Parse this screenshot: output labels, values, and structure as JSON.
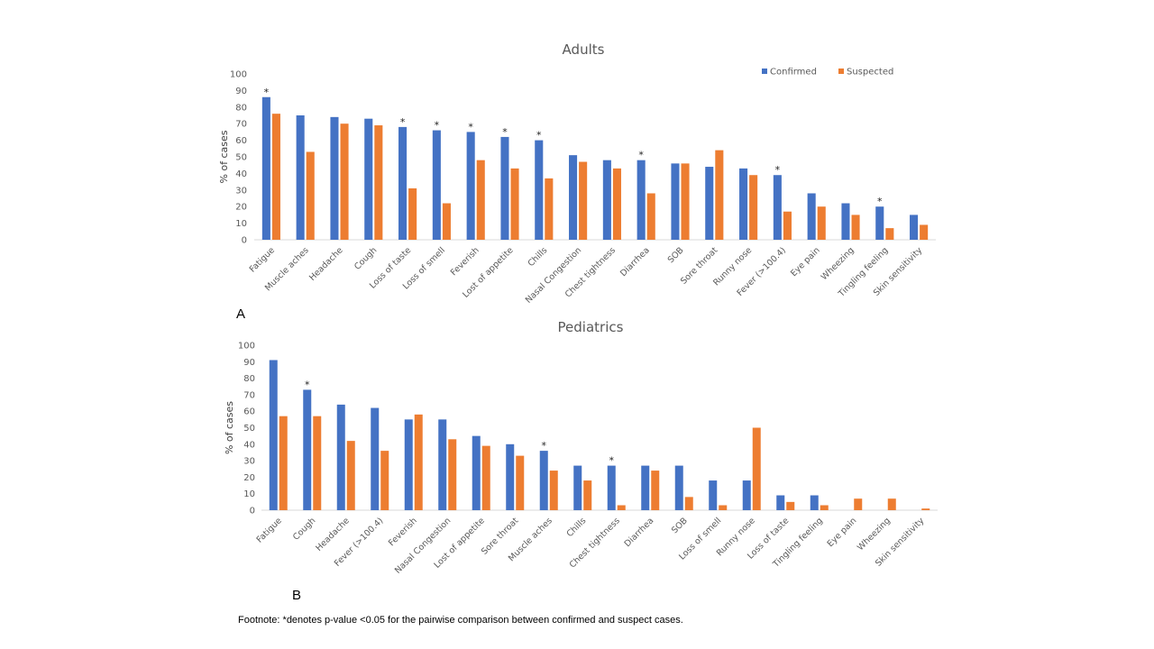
{
  "colors": {
    "confirmed": "#4472C4",
    "suspected": "#ED7D31",
    "axis": "#D9D9D9",
    "text": "#595959"
  },
  "footnote": "Footnote: *denotes p-value <0.05 for the pairwise comparison between confirmed and suspect cases.",
  "chart_data": [
    {
      "type": "bar",
      "panel_label": "A",
      "title": "Adults",
      "xlabel": "",
      "ylabel": "% of cases",
      "ylim": [
        0,
        100
      ],
      "yticks": [
        0,
        10,
        20,
        30,
        40,
        50,
        60,
        70,
        80,
        90,
        100
      ],
      "grid": false,
      "legend_position": "top-right",
      "categories": [
        "Fatigue",
        "Muscle aches",
        "Headache",
        "Cough",
        "Loss of taste",
        "Loss of smell",
        "Feverish",
        "Lost of appetite",
        "Chills",
        "Nasal Congestion",
        "Chest tightness",
        "Diarrhea",
        "SOB",
        "Sore throat",
        "Runny nose",
        "Fever (>100.4)",
        "Eye pain",
        "Wheezing",
        "Tingling feeling",
        "Skin sensitivity"
      ],
      "series": [
        {
          "name": "Confirmed",
          "values": [
            86,
            75,
            74,
            73,
            68,
            66,
            65,
            62,
            60,
            51,
            48,
            48,
            46,
            44,
            43,
            39,
            28,
            22,
            20,
            15
          ]
        },
        {
          "name": "Suspected",
          "values": [
            76,
            53,
            70,
            69,
            31,
            22,
            48,
            43,
            37,
            47,
            43,
            28,
            46,
            54,
            39,
            17,
            20,
            15,
            7,
            9
          ]
        }
      ],
      "significant": [
        true,
        false,
        false,
        false,
        true,
        true,
        true,
        true,
        true,
        false,
        false,
        true,
        false,
        false,
        false,
        true,
        false,
        false,
        true,
        false
      ]
    },
    {
      "type": "bar",
      "panel_label": "B",
      "title": "Pediatrics",
      "xlabel": "",
      "ylabel": "% of cases",
      "ylim": [
        0,
        100
      ],
      "yticks": [
        0,
        10,
        20,
        30,
        40,
        50,
        60,
        70,
        80,
        90,
        100
      ],
      "grid": false,
      "legend_position": "none",
      "categories": [
        "Fatigue",
        "Cough",
        "Headache",
        "Fever (>100.4)",
        "Feverish",
        "Nasal Congestion",
        "Lost of appetite",
        "Sore throat",
        "Muscle aches",
        "Chills",
        "Chest tightness",
        "Diarrhea",
        "SOB",
        "Loss of smell",
        "Runny nose",
        "Loss of taste",
        "Tingling feeling",
        "Eye pain",
        "Wheezing",
        "Skin sensitivity"
      ],
      "series": [
        {
          "name": "Confirmed",
          "values": [
            91,
            73,
            64,
            62,
            55,
            55,
            45,
            40,
            36,
            27,
            27,
            27,
            27,
            18,
            18,
            9,
            9,
            0,
            0,
            0
          ]
        },
        {
          "name": "Suspected",
          "values": [
            57,
            57,
            42,
            36,
            58,
            43,
            39,
            33,
            24,
            18,
            3,
            24,
            8,
            3,
            50,
            5,
            3,
            7,
            7,
            1
          ]
        }
      ],
      "significant": [
        false,
        true,
        false,
        false,
        false,
        false,
        false,
        false,
        true,
        false,
        true,
        false,
        false,
        false,
        false,
        false,
        false,
        false,
        false,
        false
      ]
    }
  ]
}
